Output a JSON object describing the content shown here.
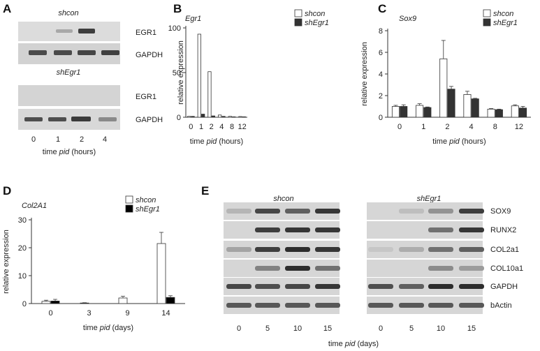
{
  "panels": {
    "A": {
      "label": "A",
      "blot1_title": "shcon",
      "blot2_title": "shEgr1",
      "bands": [
        "EGR1",
        "GAPDH"
      ],
      "lanes": [
        "0",
        "1",
        "2",
        "4"
      ],
      "xlabel_pre": "time ",
      "xlabel_it": "pid",
      "xlabel_post": " (hours)"
    },
    "B": {
      "label": "B"
    },
    "C": {
      "label": "C"
    },
    "D": {
      "label": "D"
    },
    "E": {
      "label": "E",
      "left_title": "shcon",
      "right_title": "shEgr1",
      "bands": [
        "SOX9",
        "RUNX2",
        "COL2a1",
        "COL10a1",
        "GAPDH",
        "bActin"
      ],
      "lanes": [
        "0",
        "5",
        "10",
        "15"
      ],
      "xlabel_pre": "time ",
      "xlabel_it": "pid",
      "xlabel_post": " (days)"
    }
  },
  "chart_data": [
    {
      "id": "B",
      "type": "bar",
      "title": "Egr1",
      "ylabel": "relative expression",
      "xlabel_pre": "time ",
      "xlabel_it": "pid",
      "xlabel_post": " (hours)",
      "categories": [
        "0",
        "1",
        "2",
        "4",
        "8",
        "12"
      ],
      "ylim": [
        0,
        100
      ],
      "yticks": [
        "0",
        "50",
        "100"
      ],
      "series": [
        {
          "name": "shcon",
          "color": "#ffffff",
          "values": [
            1,
            93,
            51,
            2.5,
            1,
            0.8
          ],
          "errors": [
            0,
            0,
            0,
            0,
            0,
            0
          ]
        },
        {
          "name": "shEgr1",
          "color": "#333333",
          "values": [
            1,
            3.5,
            1.5,
            1,
            0.5,
            0.5
          ],
          "errors": [
            0,
            0,
            0,
            0,
            0,
            0
          ]
        }
      ]
    },
    {
      "id": "C",
      "type": "bar",
      "title": "Sox9",
      "ylabel": "relative expression",
      "xlabel_pre": "time ",
      "xlabel_it": "pid",
      "xlabel_post": " (hours)",
      "categories": [
        "0",
        "1",
        "2",
        "4",
        "8",
        "12"
      ],
      "ylim": [
        0,
        8
      ],
      "yticks": [
        "0",
        "2",
        "4",
        "6",
        "8"
      ],
      "series": [
        {
          "name": "shcon",
          "color": "#ffffff",
          "values": [
            1.0,
            1.1,
            5.4,
            2.1,
            0.75,
            1.05
          ],
          "errors": [
            0.1,
            0.15,
            1.7,
            0.3,
            0.05,
            0.1
          ]
        },
        {
          "name": "shEgr1",
          "color": "#333333",
          "values": [
            1.0,
            0.9,
            2.6,
            1.7,
            0.7,
            0.85
          ],
          "errors": [
            0.15,
            0.05,
            0.25,
            0.05,
            0.05,
            0.15
          ]
        }
      ]
    },
    {
      "id": "D",
      "type": "bar",
      "title": "Col2A1",
      "ylabel": "relative expression",
      "xlabel_pre": "time ",
      "xlabel_it": "pid",
      "xlabel_post": " (days)",
      "categories": [
        "0",
        "3",
        "9",
        "14"
      ],
      "ylim": [
        0,
        30
      ],
      "yticks": [
        "0",
        "10",
        "20",
        "30"
      ],
      "series": [
        {
          "name": "shcon",
          "color": "#ffffff",
          "values": [
            0.8,
            0.2,
            2.0,
            21.5
          ],
          "errors": [
            0.4,
            0.1,
            0.6,
            4.0
          ]
        },
        {
          "name": "shEgr1",
          "color": "#000000",
          "values": [
            0.9,
            0,
            0,
            2.2
          ],
          "errors": [
            0.6,
            0,
            0,
            0.6
          ]
        }
      ]
    }
  ]
}
